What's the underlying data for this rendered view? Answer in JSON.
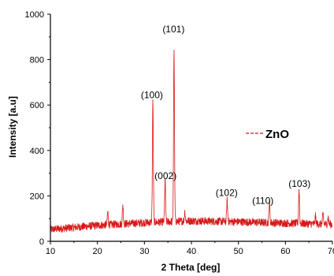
{
  "colors": {
    "series": "#d81818",
    "axis": "#000000",
    "background": "#ffffff"
  },
  "chart_data": {
    "type": "line",
    "xlabel": "2 Theta [deg]",
    "ylabel": "Intensity [a.u]",
    "xlim": [
      10,
      70
    ],
    "ylim": [
      0,
      1000
    ],
    "xticks": [
      10,
      20,
      30,
      40,
      50,
      60,
      70
    ],
    "yticks": [
      0,
      200,
      400,
      600,
      800,
      1000
    ],
    "grid": false,
    "legend": {
      "position": "right",
      "entries": [
        "ZnO"
      ]
    },
    "series": [
      {
        "name": "ZnO",
        "color": "#d81818",
        "baseline": [
          [
            10,
            52
          ],
          [
            20,
            70
          ],
          [
            30,
            82
          ],
          [
            40,
            90
          ],
          [
            50,
            86
          ],
          [
            60,
            80
          ],
          [
            70,
            75
          ]
        ],
        "peaks": [
          {
            "x": 22.2,
            "y": 130
          },
          {
            "x": 25.4,
            "y": 160
          },
          {
            "x": 31.8,
            "y": 620
          },
          {
            "x": 34.4,
            "y": 270
          },
          {
            "x": 36.3,
            "y": 840
          },
          {
            "x": 38.6,
            "y": 130
          },
          {
            "x": 47.6,
            "y": 180
          },
          {
            "x": 56.6,
            "y": 175
          },
          {
            "x": 62.9,
            "y": 225
          },
          {
            "x": 66.4,
            "y": 110
          },
          {
            "x": 68.0,
            "y": 120
          },
          {
            "x": 69.1,
            "y": 105
          }
        ]
      }
    ],
    "annotations": [
      {
        "text": "(100)",
        "x": 31.6,
        "y": 630
      },
      {
        "text": "(101)",
        "x": 36.2,
        "y": 920
      },
      {
        "text": "(002)",
        "x": 34.5,
        "y": 275
      },
      {
        "text": "(102)",
        "x": 47.5,
        "y": 200
      },
      {
        "text": "(110)",
        "x": 55.2,
        "y": 165
      },
      {
        "text": "(103)",
        "x": 63.0,
        "y": 240
      }
    ]
  }
}
